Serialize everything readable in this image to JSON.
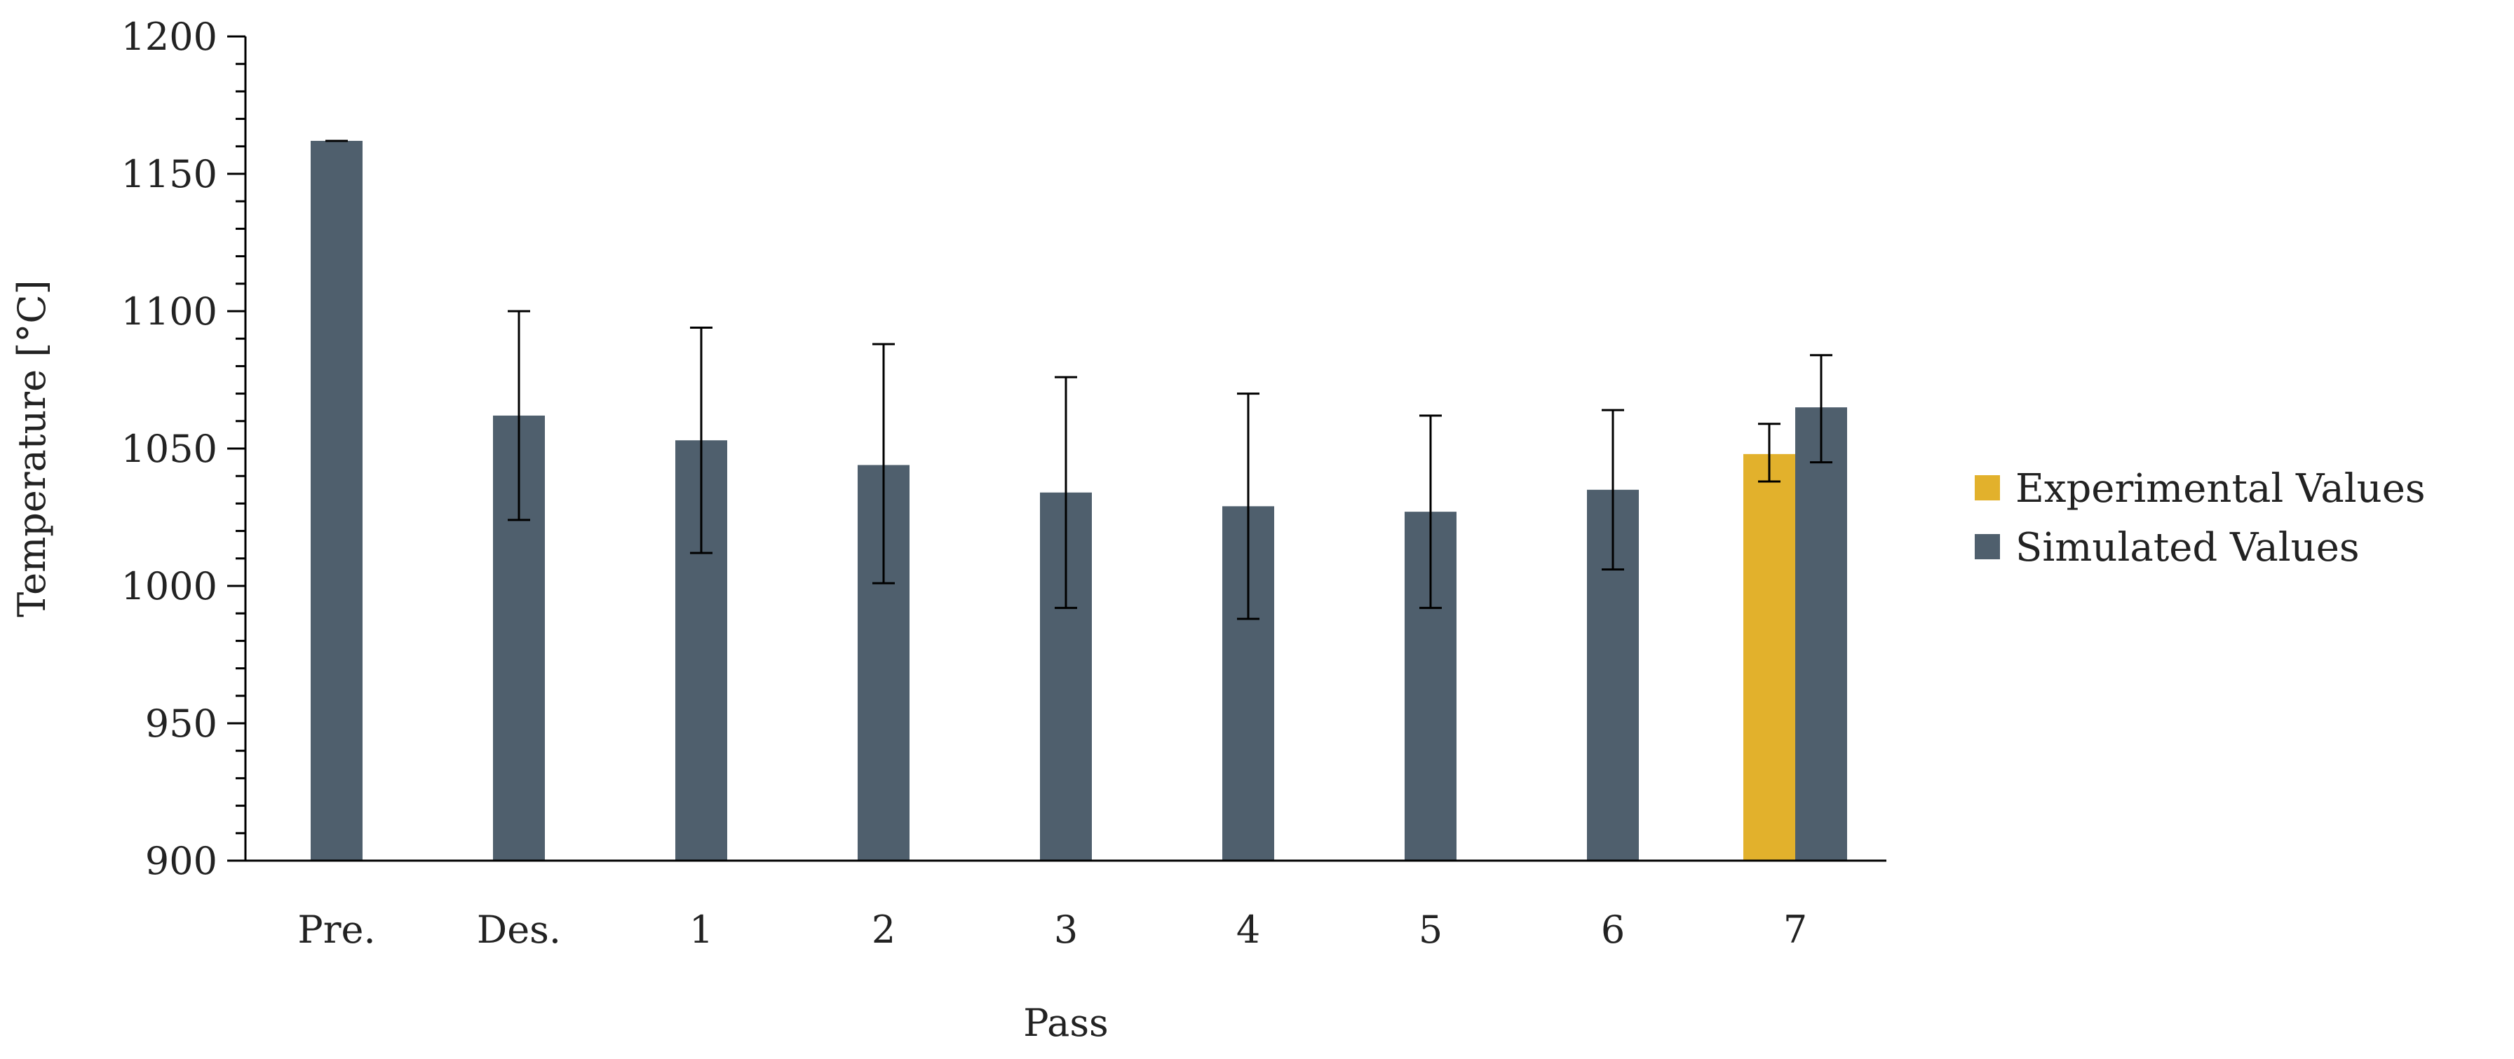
{
  "chart_data": {
    "type": "bar",
    "title": "",
    "xlabel": "Pass",
    "ylabel": "Temperature [°C]",
    "ylim": [
      900,
      1200
    ],
    "yticks": [
      900,
      950,
      1000,
      1050,
      1100,
      1150,
      1200
    ],
    "minor_ticks_per_major": 5,
    "grid": false,
    "legend": "right",
    "categories": [
      "Pre.",
      "Des.",
      "1",
      "2",
      "3",
      "4",
      "5",
      "6",
      "7"
    ],
    "series": [
      {
        "name": "Experimental Values",
        "color": "#E2B12C",
        "values": [
          null,
          null,
          null,
          null,
          null,
          null,
          null,
          null,
          1048
        ],
        "error_low": [
          null,
          null,
          null,
          null,
          null,
          null,
          null,
          null,
          1038
        ],
        "error_high": [
          null,
          null,
          null,
          null,
          null,
          null,
          null,
          null,
          1059
        ]
      },
      {
        "name": "Simulated Values",
        "color": "#4F5F6D",
        "values": [
          1162,
          1062,
          1053,
          1044,
          1034,
          1029,
          1027,
          1035,
          1065
        ],
        "error_low": [
          1162,
          1024,
          1012,
          1001,
          992,
          988,
          992,
          1006,
          1045
        ],
        "error_high": [
          1162,
          1100,
          1094,
          1088,
          1076,
          1070,
          1062,
          1064,
          1084
        ]
      }
    ]
  }
}
